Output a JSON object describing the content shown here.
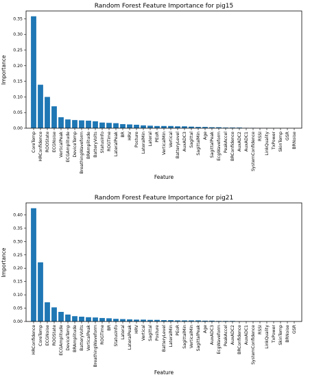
{
  "chart_data": [
    {
      "type": "bar",
      "title": "Random Forest Feature Importance for pig15",
      "xlabel": "Feature",
      "ylabel": "Importance",
      "ylim": [
        0,
        0.375
      ],
      "yticks": [
        "0.00",
        "0.05",
        "0.10",
        "0.15",
        "0.20",
        "0.25",
        "0.30",
        "0.35"
      ],
      "ytick_values": [
        0,
        0.05,
        0.1,
        0.15,
        0.2,
        0.25,
        0.3,
        0.35
      ],
      "color": "#1f77b4",
      "categories": [
        "CoreTemp",
        "HRConfidence",
        "ROOState",
        "ECGNoise",
        "VerticalPeak",
        "ECGAmplitude",
        "DeviceTemp",
        "BreathingWaveform",
        "BRAmplitude",
        "BatteryVolts",
        "StatusInfo",
        "ROGTime",
        "LateralPeak",
        "BR",
        "HRV",
        "Posture",
        "LateralMin",
        "Lateral",
        "PEoR",
        "VerticalMin",
        "Vertical",
        "BatteryLevel",
        "AuxADC3",
        "Sagittal",
        "SagittalMin",
        "Age",
        "SagittalPeak",
        "EcgWaveform",
        "PeakAccel",
        "BRConfidence",
        "AuxADC2",
        "AuxADC1",
        "SystemConfidence",
        "RSSI",
        "LinkQuality",
        "TxPower",
        "SkinTemp",
        "GSR",
        "BRNoise"
      ],
      "values": [
        0.358,
        0.139,
        0.1,
        0.07,
        0.035,
        0.028,
        0.026,
        0.025,
        0.024,
        0.022,
        0.018,
        0.017,
        0.016,
        0.013,
        0.012,
        0.011,
        0.009,
        0.008,
        0.007,
        0.007,
        0.007,
        0.006,
        0.006,
        0.005,
        0.004,
        0.004,
        0.003,
        0.003,
        0.002,
        0.002,
        0.002,
        0.001,
        0.001,
        0.0005,
        0.0005,
        0.0003,
        0.0002,
        0.0002,
        0.0001
      ]
    },
    {
      "type": "bar",
      "title": "Random Forest Feature Importance for pig21",
      "xlabel": "Feature",
      "ylabel": "Importance",
      "ylim": [
        0,
        0.445
      ],
      "yticks": [
        "0.00",
        "0.05",
        "0.10",
        "0.15",
        "0.20",
        "0.25",
        "0.30",
        "0.35",
        "0.40"
      ],
      "ytick_values": [
        0,
        0.05,
        0.1,
        0.15,
        0.2,
        0.25,
        0.3,
        0.35,
        0.4
      ],
      "color": "#1f77b4",
      "categories": [
        "HRConfidence",
        "CoreTemp",
        "ECGNoise",
        "ROOState",
        "ECGAmplitude",
        "DeviceTemp",
        "BRAmplitude",
        "BatteryVolts",
        "VerticalPeak",
        "BreathingWaveform",
        "ROGTime",
        "BR",
        "StatusInfo",
        "Lateral",
        "LateralPeak",
        "HRV",
        "Vertical",
        "Sagittal",
        "Posture",
        "BatteryLevel",
        "LateralMin",
        "PEoR",
        "SagittalMin",
        "VerticalMin",
        "SagittalPeak",
        "Age",
        "AuxADC3",
        "EcgWaveform",
        "PeakAccel",
        "AuxADC2",
        "BRConfidence",
        "AuxADC1",
        "SystemConfidence",
        "RSSI",
        "LinkQuality",
        "TxPower",
        "SkinTemp",
        "BRNoise",
        "GSR"
      ],
      "values": [
        0.425,
        0.222,
        0.072,
        0.053,
        0.036,
        0.026,
        0.02,
        0.018,
        0.016,
        0.015,
        0.013,
        0.012,
        0.01,
        0.009,
        0.008,
        0.007,
        0.007,
        0.006,
        0.006,
        0.005,
        0.005,
        0.004,
        0.004,
        0.004,
        0.004,
        0.003,
        0.003,
        0.002,
        0.002,
        0.002,
        0.001,
        0.001,
        0.001,
        0.0005,
        0.0005,
        0.0003,
        0.0002,
        0.0002,
        0.0001
      ]
    }
  ]
}
